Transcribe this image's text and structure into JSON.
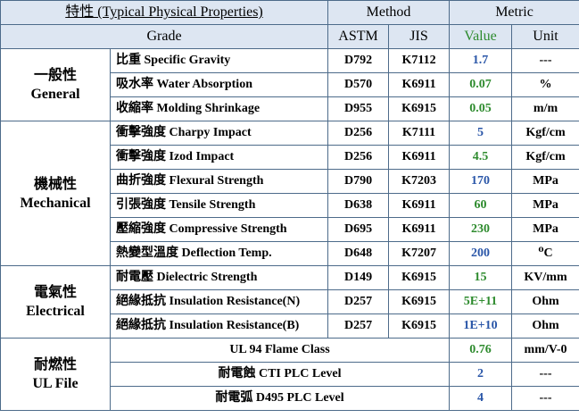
{
  "header": {
    "title": "特性 (Typical Physical Properties)",
    "method": "Method",
    "metric": "Metric",
    "grade": "Grade",
    "astm": "ASTM",
    "jis": "JIS",
    "value": "Value",
    "unit": "Unit"
  },
  "groups": {
    "general": {
      "zh": "一般性",
      "en": "General"
    },
    "mechanical": {
      "zh": "機械性",
      "en": "Mechanical"
    },
    "electrical": {
      "zh": "電氣性",
      "en": "Electrical"
    },
    "fire": {
      "zh": "耐燃性",
      "en": "UL  File"
    }
  },
  "rows": [
    {
      "prop": "比重 Specific Gravity",
      "astm": "D792",
      "jis": "K7112",
      "value": "1.7",
      "unit": "---",
      "color": "blue"
    },
    {
      "prop": "吸水率 Water Absorption",
      "astm": "D570",
      "jis": "K6911",
      "value": "0.07",
      "unit": "%",
      "color": "green"
    },
    {
      "prop": "收縮率 Molding Shrinkage",
      "astm": "D955",
      "jis": "K6915",
      "value": "0.05",
      "unit": "m/m",
      "color": "green"
    },
    {
      "prop": "衝擊強度 Charpy Impact",
      "astm": "D256",
      "jis": "K7111",
      "value": "5",
      "unit": "Kgf/cm",
      "color": "blue"
    },
    {
      "prop": "衝擊強度 Izod Impact",
      "astm": "D256",
      "jis": "K6911",
      "value": "4.5",
      "unit": "Kgf/cm",
      "color": "green"
    },
    {
      "prop": "曲折強度 Flexural Strength",
      "astm": "D790",
      "jis": "K7203",
      "value": "170",
      "unit": "MPa",
      "color": "blue"
    },
    {
      "prop": "引張強度 Tensile Strength",
      "astm": "D638",
      "jis": "K6911",
      "value": "60",
      "unit": "MPa",
      "color": "green"
    },
    {
      "prop": "壓縮強度 Compressive Strength",
      "astm": "D695",
      "jis": "K6911",
      "value": "230",
      "unit": "MPa",
      "color": "green"
    },
    {
      "prop": "熱變型溫度 Deflection Temp.",
      "astm": "D648",
      "jis": "K7207",
      "value": "200",
      "unit": "⁰C",
      "color": "blue"
    },
    {
      "prop": "耐電壓 Dielectric Strength",
      "astm": "D149",
      "jis": "K6915",
      "value": "15",
      "unit": "KV/mm",
      "color": "green"
    },
    {
      "prop": "絕緣抵抗 Insulation Resistance(N)",
      "astm": "D257",
      "jis": "K6915",
      "value": "5E+11",
      "unit": "Ohm",
      "color": "green"
    },
    {
      "prop": "絕緣抵抗 Insulation Resistance(B)",
      "astm": "D257",
      "jis": "K6915",
      "value": "1E+10",
      "unit": "Ohm",
      "color": "blue"
    }
  ],
  "ul_rows": [
    {
      "prop": "UL 94 Flame Class",
      "value": "0.76",
      "unit": "mm/V-0",
      "color": "green"
    },
    {
      "prop": "耐電蝕 CTI  PLC Level",
      "value": "2",
      "unit": "---",
      "color": "blue"
    },
    {
      "prop": "耐電弧 D495  PLC Level",
      "value": "4",
      "unit": "---",
      "color": "blue"
    }
  ],
  "colors": {
    "header_bg": "#dde6f2",
    "border": "#4d6b8a",
    "value_blue": "#2a56a8",
    "value_green": "#2e8b2e"
  }
}
